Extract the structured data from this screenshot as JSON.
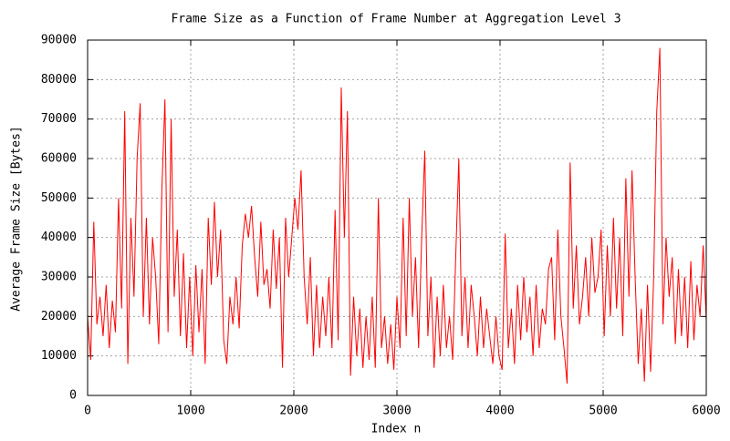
{
  "chart_data": {
    "type": "line",
    "title": "Frame Size as a Function of Frame Number at Aggregation Level 3",
    "x_label": "Index n",
    "y_label": "Average Frame Size [Bytes]",
    "xlim": [
      0,
      6000
    ],
    "ylim": [
      0,
      90000
    ],
    "xticks": [
      0,
      1000,
      2000,
      3000,
      4000,
      5000,
      6000
    ],
    "yticks": [
      0,
      10000,
      20000,
      30000,
      40000,
      50000,
      60000,
      70000,
      80000,
      90000
    ],
    "grid": true,
    "x": [
      0,
      30,
      60,
      90,
      120,
      150,
      180,
      210,
      240,
      270,
      300,
      330,
      360,
      390,
      420,
      450,
      480,
      510,
      540,
      570,
      600,
      630,
      660,
      690,
      720,
      750,
      780,
      810,
      840,
      870,
      900,
      930,
      960,
      990,
      1020,
      1050,
      1080,
      1110,
      1140,
      1170,
      1200,
      1230,
      1260,
      1290,
      1320,
      1350,
      1380,
      1410,
      1440,
      1470,
      1500,
      1530,
      1560,
      1590,
      1620,
      1650,
      1680,
      1710,
      1740,
      1770,
      1800,
      1830,
      1860,
      1890,
      1920,
      1950,
      1980,
      2010,
      2040,
      2070,
      2100,
      2130,
      2160,
      2190,
      2220,
      2250,
      2280,
      2310,
      2340,
      2370,
      2400,
      2430,
      2460,
      2490,
      2520,
      2550,
      2580,
      2610,
      2640,
      2670,
      2700,
      2730,
      2760,
      2790,
      2820,
      2850,
      2880,
      2910,
      2940,
      2970,
      3000,
      3030,
      3060,
      3090,
      3120,
      3150,
      3180,
      3210,
      3240,
      3270,
      3300,
      3330,
      3360,
      3390,
      3420,
      3450,
      3480,
      3510,
      3540,
      3570,
      3600,
      3630,
      3660,
      3690,
      3720,
      3750,
      3780,
      3810,
      3840,
      3870,
      3900,
      3930,
      3960,
      3990,
      4020,
      4050,
      4080,
      4110,
      4140,
      4170,
      4200,
      4230,
      4260,
      4290,
      4320,
      4350,
      4380,
      4410,
      4440,
      4470,
      4500,
      4530,
      4560,
      4590,
      4620,
      4650,
      4680,
      4710,
      4740,
      4770,
      4800,
      4830,
      4860,
      4890,
      4920,
      4950,
      4980,
      5010,
      5040,
      5070,
      5100,
      5130,
      5160,
      5190,
      5220,
      5250,
      5280,
      5310,
      5340,
      5370,
      5400,
      5430,
      5460,
      5490,
      5520,
      5550,
      5580,
      5610,
      5640,
      5670,
      5700,
      5730,
      5760,
      5790,
      5820,
      5850,
      5880,
      5910,
      5940,
      5970,
      6000
    ],
    "series": [
      {
        "color": "#ff0000",
        "values": [
          20000,
          9000,
          44000,
          18000,
          25000,
          15000,
          28000,
          12000,
          24000,
          16000,
          50000,
          22000,
          72000,
          8000,
          45000,
          25000,
          60000,
          74000,
          20000,
          45000,
          18000,
          40000,
          30000,
          13000,
          52000,
          75000,
          16000,
          70000,
          25000,
          42000,
          15000,
          36000,
          12000,
          30000,
          10000,
          33000,
          16000,
          32000,
          8000,
          45000,
          28000,
          49000,
          30000,
          42000,
          14000,
          8000,
          25000,
          18000,
          30000,
          17000,
          38000,
          46000,
          40000,
          48000,
          35000,
          25000,
          44000,
          28000,
          32000,
          22000,
          42000,
          27000,
          40000,
          7000,
          45000,
          30000,
          40000,
          50000,
          42000,
          57000,
          30000,
          18000,
          35000,
          10000,
          28000,
          12000,
          25000,
          15000,
          30000,
          12000,
          47000,
          14000,
          78000,
          40000,
          72000,
          5000,
          25000,
          10000,
          22000,
          7000,
          20000,
          9000,
          25000,
          7000,
          50000,
          12000,
          20000,
          8000,
          18000,
          6500,
          25000,
          12000,
          45000,
          15000,
          50000,
          20000,
          35000,
          12000,
          40000,
          62000,
          15000,
          30000,
          7000,
          25000,
          10000,
          28000,
          12000,
          20000,
          9000,
          35000,
          60000,
          15000,
          30000,
          12000,
          28000,
          20000,
          10000,
          25000,
          12000,
          22000,
          15000,
          8000,
          20000,
          10000,
          6500,
          41000,
          12000,
          22000,
          8000,
          28000,
          14000,
          30000,
          16000,
          25000,
          10000,
          28000,
          12000,
          22000,
          18000,
          32000,
          35000,
          14000,
          42000,
          20000,
          12000,
          3000,
          59000,
          22000,
          38000,
          18000,
          25000,
          35000,
          20000,
          40000,
          26000,
          30000,
          42000,
          15000,
          38000,
          20000,
          45000,
          22000,
          40000,
          15000,
          55000,
          25000,
          57000,
          30000,
          8000,
          22000,
          3500,
          28000,
          6000,
          30000,
          72000,
          88000,
          18000,
          40000,
          25000,
          35000,
          13000,
          32000,
          15000,
          30000,
          12000,
          34000,
          14000,
          28000,
          20000,
          38000,
          19000
        ]
      }
    ]
  }
}
